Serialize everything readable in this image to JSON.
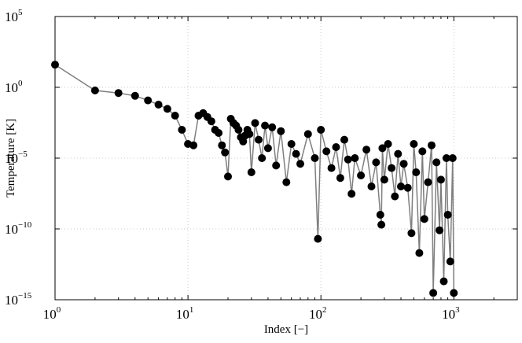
{
  "chart_data": {
    "type": "scatter",
    "xlabel": "Index [−]",
    "ylabel": "Temperature [K]",
    "xscale": "log",
    "yscale": "log",
    "xlim": [
      1,
      3000
    ],
    "ylim": [
      1e-15,
      100000.0
    ],
    "grid": true,
    "x_ticks": [
      {
        "value": 1,
        "base": "10",
        "exp": "0"
      },
      {
        "value": 10,
        "base": "10",
        "exp": "1"
      },
      {
        "value": 100,
        "base": "10",
        "exp": "2"
      },
      {
        "value": 1000,
        "base": "10",
        "exp": "3"
      }
    ],
    "y_ticks": [
      {
        "value": 100000.0,
        "base": "10",
        "exp": "5"
      },
      {
        "value": 1,
        "base": "10",
        "exp": "0"
      },
      {
        "value": 1e-05,
        "base": "10",
        "exp": "−5"
      },
      {
        "value": 1e-10,
        "base": "10",
        "exp": "−10"
      },
      {
        "value": 1e-15,
        "base": "10",
        "exp": "−15"
      }
    ],
    "series": [
      {
        "marker_color": "#000000",
        "line_color": "#7f7f7f",
        "x": [
          1,
          2,
          3,
          4,
          5,
          6,
          7,
          8,
          9,
          10,
          11,
          12,
          13,
          14,
          15,
          16,
          17,
          18,
          19,
          20,
          21,
          22,
          23,
          24,
          25,
          26,
          27,
          28,
          29,
          30,
          32,
          34,
          36,
          38,
          40,
          43,
          46,
          50,
          55,
          60,
          65,
          70,
          80,
          90,
          95,
          100,
          110,
          120,
          130,
          140,
          150,
          160,
          170,
          180,
          200,
          220,
          240,
          260,
          280,
          285,
          290,
          300,
          320,
          340,
          360,
          380,
          400,
          420,
          450,
          480,
          500,
          520,
          550,
          580,
          600,
          640,
          680,
          700,
          740,
          780,
          800,
          840,
          880,
          900,
          940,
          980,
          1000
        ],
        "y": [
          40,
          0.6,
          0.4,
          0.25,
          0.12,
          0.06,
          0.03,
          0.01,
          0.001,
          0.0001,
          8e-05,
          0.01,
          0.015,
          0.008,
          0.004,
          0.001,
          0.0006,
          8e-05,
          2.5e-05,
          5e-07,
          0.006,
          0.003,
          0.002,
          0.001,
          0.0003,
          0.00015,
          0.0004,
          0.001,
          0.0005,
          1e-06,
          0.003,
          0.0002,
          1e-05,
          0.002,
          5e-05,
          0.0015,
          3e-06,
          0.0008,
          2e-07,
          0.0001,
          2e-05,
          4e-06,
          0.0005,
          1e-05,
          2e-11,
          0.001,
          3e-05,
          2e-06,
          6e-05,
          4e-07,
          0.0002,
          8e-06,
          3e-08,
          1e-05,
          6e-07,
          4e-05,
          1e-07,
          5e-06,
          1e-09,
          2e-10,
          5e-05,
          3e-07,
          0.0001,
          2e-06,
          2e-08,
          2e-05,
          1e-07,
          4e-06,
          8e-08,
          5e-11,
          0.0001,
          1e-06,
          2e-12,
          3e-05,
          5e-10,
          2e-07,
          8e-05,
          3e-15,
          5e-06,
          8e-11,
          3e-07,
          2e-14,
          1e-05,
          1e-09,
          5e-13,
          1e-05,
          3e-15
        ]
      }
    ]
  }
}
